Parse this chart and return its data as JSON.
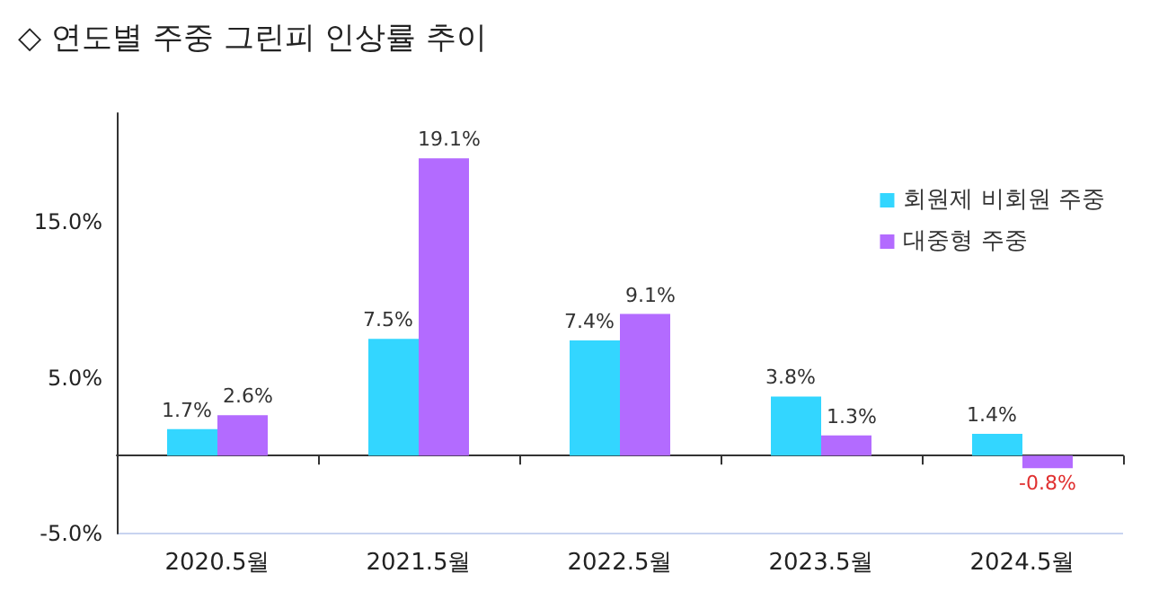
{
  "chart_data": {
    "type": "bar",
    "title": "◇ 연도별 주중 그린피 인상률 추이",
    "categories": [
      "2020.5월",
      "2021.5월",
      "2022.5월",
      "2023.5월",
      "2024.5월"
    ],
    "series": [
      {
        "name": "회원제 비회원 주중",
        "color": "#33d6ff",
        "values": [
          1.7,
          7.5,
          7.4,
          3.8,
          1.4
        ],
        "value_labels": [
          "1.7%",
          "7.5%",
          "7.4%",
          "3.8%",
          "1.4%"
        ]
      },
      {
        "name": "대중형 주중",
        "color": "#b36bff",
        "values": [
          2.6,
          19.1,
          9.1,
          1.3,
          -0.8
        ],
        "value_labels": [
          "2.6%",
          "19.1%",
          "9.1%",
          "1.3%",
          "-0.8%"
        ]
      }
    ],
    "ylim": [
      -5,
      22
    ],
    "yticks": [
      {
        "value": -5,
        "label": "-5.0%"
      },
      {
        "value": 5,
        "label": "5.0%"
      },
      {
        "value": 15,
        "label": "15.0%"
      }
    ],
    "grid": false,
    "legend": "top right"
  }
}
